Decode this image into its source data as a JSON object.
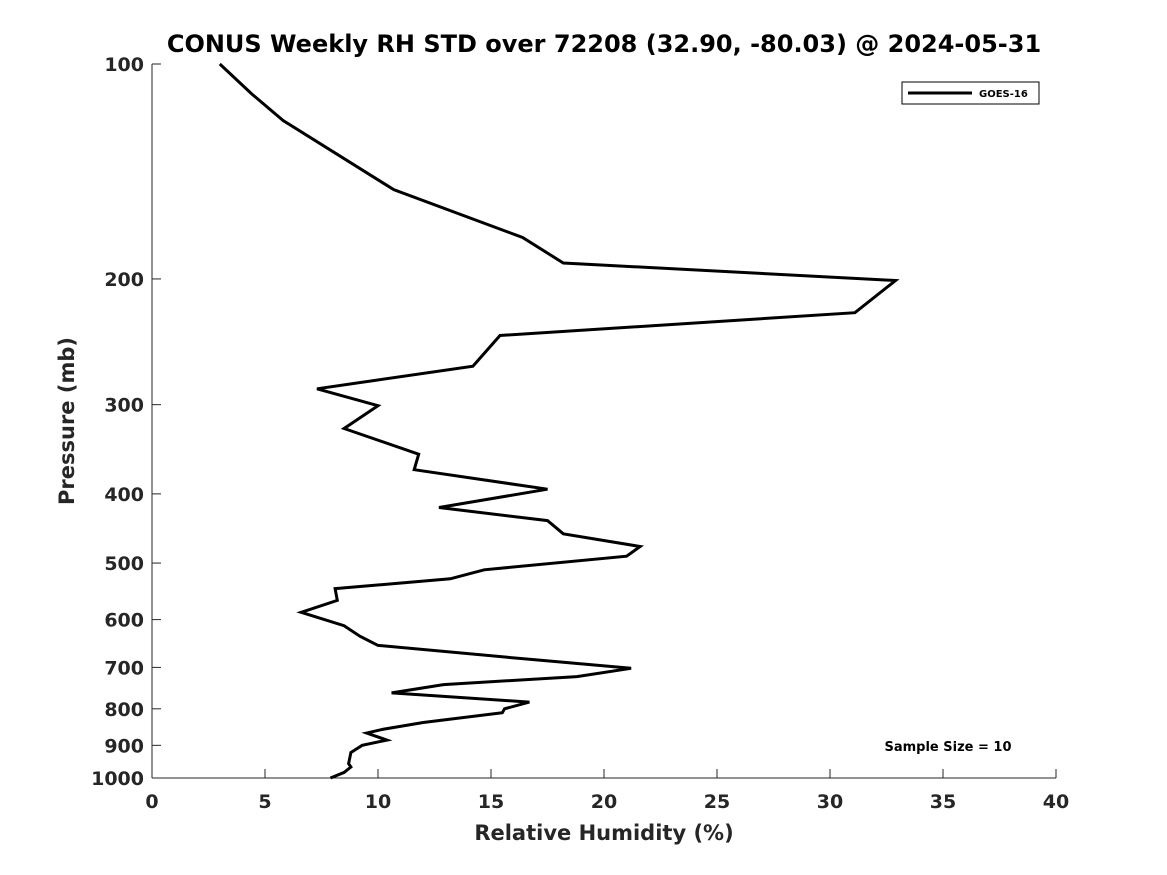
{
  "chart_data": {
    "type": "line",
    "title": "CONUS Weekly RH STD over 72208 (32.90, -80.03) @ 2024-05-31",
    "xlabel": "Relative Humidity (%)",
    "ylabel": "Pressure (mb)",
    "xlim": [
      0,
      40
    ],
    "ylim": [
      100,
      1000
    ],
    "y_scale": "log",
    "y_reversed": true,
    "x_ticks": [
      "0",
      "5",
      "10",
      "15",
      "20",
      "25",
      "30",
      "35",
      "40"
    ],
    "y_ticks": [
      "100",
      "200",
      "300",
      "400",
      "500",
      "600",
      "700",
      "800",
      "900",
      "1000"
    ],
    "grid": false,
    "legend_position": "top-right",
    "annotation": "Sample Size = 10",
    "series": [
      {
        "name": "GOES-16",
        "color": "#000000",
        "points": [
          [
            3.0,
            100
          ],
          [
            4.4,
            110
          ],
          [
            5.8,
            120
          ],
          [
            10.7,
            150
          ],
          [
            16.4,
            175
          ],
          [
            18.2,
            190
          ],
          [
            32.9,
            201
          ],
          [
            31.1,
            223
          ],
          [
            15.4,
            240
          ],
          [
            14.2,
            265
          ],
          [
            7.3,
            285
          ],
          [
            10.0,
            301
          ],
          [
            8.5,
            324
          ],
          [
            11.8,
            352
          ],
          [
            11.6,
            370
          ],
          [
            17.5,
            394
          ],
          [
            12.7,
            418
          ],
          [
            17.5,
            436
          ],
          [
            18.2,
            455
          ],
          [
            21.6,
            474
          ],
          [
            21.0,
            489
          ],
          [
            14.7,
            511
          ],
          [
            13.2,
            526
          ],
          [
            8.1,
            543
          ],
          [
            8.2,
            564
          ],
          [
            6.6,
            586
          ],
          [
            8.5,
            612
          ],
          [
            9.2,
            633
          ],
          [
            10.0,
            652
          ],
          [
            16.7,
            682
          ],
          [
            21.2,
            702
          ],
          [
            18.8,
            721
          ],
          [
            12.9,
            740
          ],
          [
            10.6,
            760
          ],
          [
            16.7,
            783
          ],
          [
            15.6,
            800
          ],
          [
            15.5,
            810
          ],
          [
            12.0,
            836
          ],
          [
            10.2,
            855
          ],
          [
            9.5,
            865
          ],
          [
            10.4,
            885
          ],
          [
            9.3,
            900
          ],
          [
            8.8,
            921
          ],
          [
            8.7,
            955
          ],
          [
            8.8,
            965
          ],
          [
            8.5,
            982
          ],
          [
            7.9,
            1000
          ]
        ]
      }
    ]
  }
}
